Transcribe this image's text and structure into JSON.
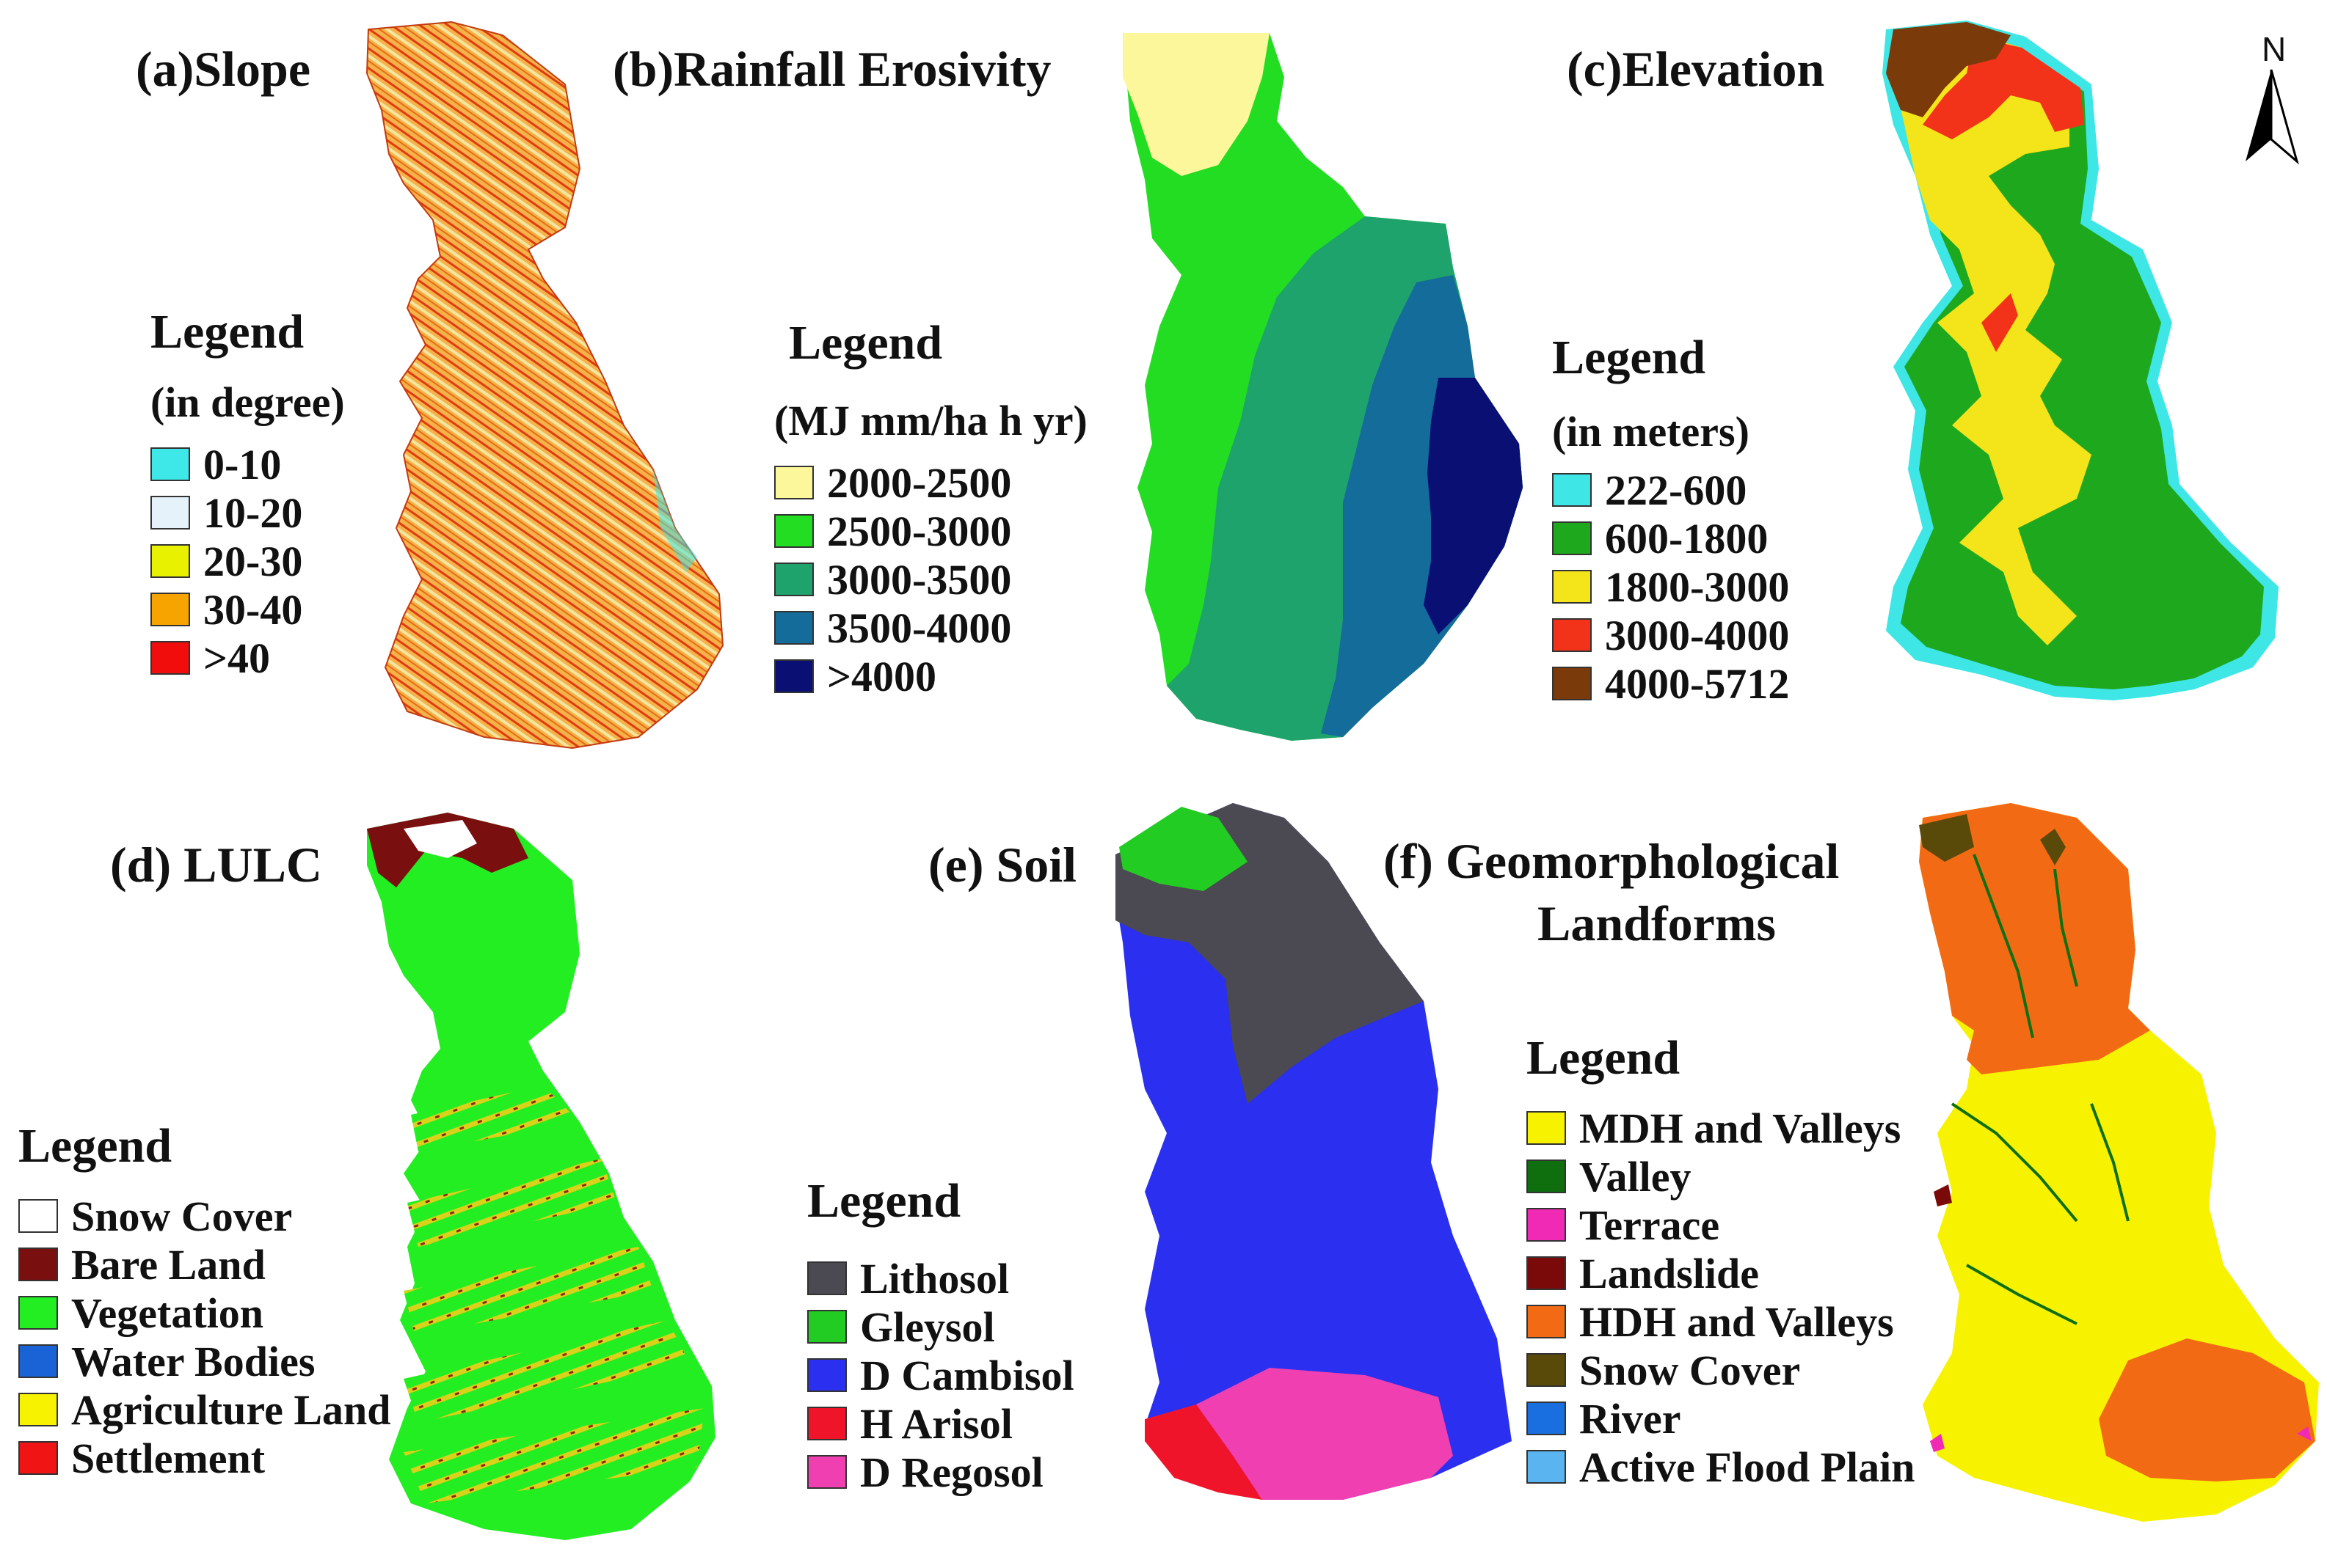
{
  "panels": {
    "a": {
      "title": "(a)Slope",
      "legend_title": "Legend",
      "legend_unit": "(in degree)",
      "items": [
        {
          "label": "0-10",
          "color": "#3ee8e8"
        },
        {
          "label": "10-20",
          "color": "#e6f2fa"
        },
        {
          "label": "20-30",
          "color": "#e8f200"
        },
        {
          "label": "30-40",
          "color": "#f7a400"
        },
        {
          "label": ">40",
          "color": "#f20d0d"
        }
      ]
    },
    "b": {
      "title": "(b)Rainfall Erosivity",
      "legend_title": "Legend",
      "legend_unit": "(MJ mm/ha h yr)",
      "items": [
        {
          "label": "2000-2500",
          "color": "#fbf79a"
        },
        {
          "label": "2500-3000",
          "color": "#22dd22"
        },
        {
          "label": "3000-3500",
          "color": "#1ea36c"
        },
        {
          "label": "3500-4000",
          "color": "#146c9a"
        },
        {
          "label": ">4000",
          "color": "#0a0f73"
        }
      ]
    },
    "c": {
      "title": "(c)Elevation",
      "legend_title": "Legend",
      "legend_unit": "(in meters)",
      "items": [
        {
          "label": "222-600",
          "color": "#3ee6e6"
        },
        {
          "label": "600-1800",
          "color": "#1ea81e"
        },
        {
          "label": "1800-3000",
          "color": "#f4e41a"
        },
        {
          "label": "3000-4000",
          "color": "#f2331a"
        },
        {
          "label": "4000-5712",
          "color": "#7a3a0a"
        }
      ]
    },
    "d": {
      "title": "(d) LULC",
      "legend_title": "Legend",
      "items": [
        {
          "label": "Snow Cover",
          "color": "#ffffff"
        },
        {
          "label": "Bare Land",
          "color": "#7a0f0f"
        },
        {
          "label": "Vegetation",
          "color": "#22ee22"
        },
        {
          "label": "Water Bodies",
          "color": "#1a63d6"
        },
        {
          "label": "Agriculture Land",
          "color": "#f6f200"
        },
        {
          "label": "Settlement",
          "color": "#f01414"
        }
      ]
    },
    "e": {
      "title": "(e) Soil",
      "legend_title": "Legend",
      "items": [
        {
          "label": "Lithosol",
          "color": "#4b4a52"
        },
        {
          "label": "Gleysol",
          "color": "#22cc22"
        },
        {
          "label": "D Cambisol",
          "color": "#2a2ff0"
        },
        {
          "label": "H Arisol",
          "color": "#f0142a"
        },
        {
          "label": "D Regosol",
          "color": "#f03fb0"
        }
      ]
    },
    "f": {
      "title_line1": "(f) Geomorphological",
      "title_line2": "Landforms",
      "legend_title": "Legend",
      "items": [
        {
          "label": "MDH and Valleys",
          "color": "#f6f200"
        },
        {
          "label": "Valley",
          "color": "#0f6f0f"
        },
        {
          "label": "Terrace",
          "color": "#f02ab4"
        },
        {
          "label": "Landslide",
          "color": "#7a0a0a"
        },
        {
          "label": "HDH and Valleys",
          "color": "#f26a14"
        },
        {
          "label": "Snow Cover",
          "color": "#5a4a0a"
        },
        {
          "label": "River",
          "color": "#1a6fe0"
        },
        {
          "label": "Active Flood Plain",
          "color": "#5ab4f0"
        }
      ]
    }
  },
  "north_arrow": {
    "label": "N",
    "icon": "north-arrow-icon"
  }
}
